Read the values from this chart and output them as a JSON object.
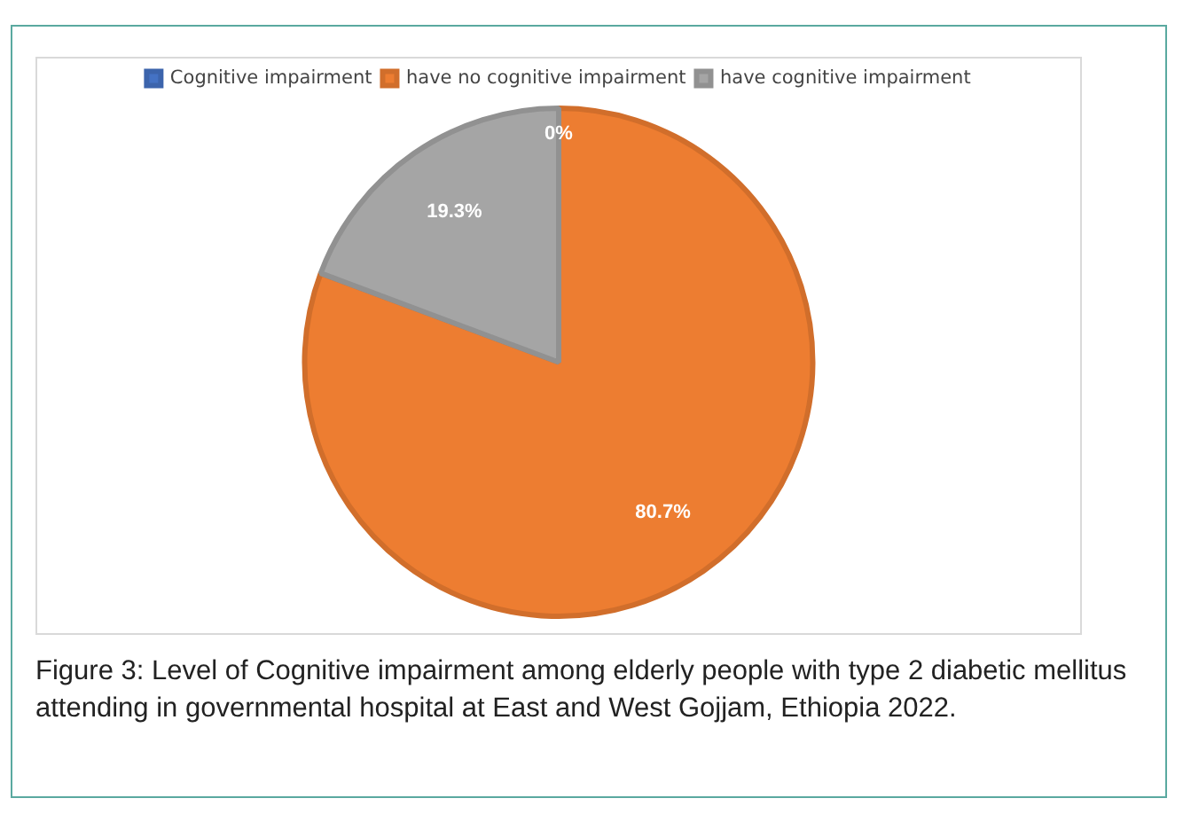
{
  "chart_data": {
    "type": "pie",
    "categories": [
      "Cognitive impairment",
      "have no cognitive impairment",
      "have cognitive impairment"
    ],
    "values": [
      0,
      80.7,
      19.3
    ],
    "colors": [
      "#4472c4",
      "#ed7d31",
      "#a5a5a5"
    ],
    "value_labels": [
      "0%",
      "80.7%",
      "19.3%"
    ],
    "legend": "top",
    "annotations": [
      "Figure 3: Level of Cognitive impairment among elderly people with type 2 diabetic mellitus attending in governmental hospital at East and West Gojjam, Ethiopia 2022."
    ]
  }
}
